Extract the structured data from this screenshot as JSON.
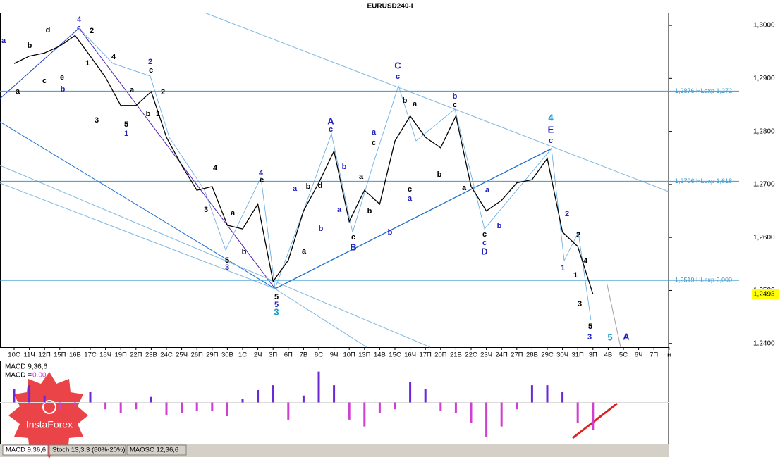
{
  "chart_data": [
    {
      "type": "line",
      "title": "EURUSD240-I",
      "color": "#000000",
      "categories": [
        "10С",
        "11Ч",
        "12П",
        "15П",
        "16В",
        "17С",
        "18Ч",
        "19П",
        "22П",
        "23В",
        "24С",
        "25Ч",
        "26П",
        "29П",
        "30В",
        "1С",
        "2Ч",
        "3П",
        "6П",
        "7В",
        "8С",
        "9Ч",
        "10П",
        "13П",
        "14В",
        "15С",
        "16Ч",
        "17П",
        "20П",
        "21В",
        "22С",
        "23Ч",
        "24П",
        "27П",
        "28В",
        "29С",
        "30Ч",
        "31П",
        "3П",
        "4В",
        "5С",
        "6Ч",
        "7П",
        "н"
      ],
      "values": [
        1.2928,
        1.2942,
        1.2948,
        1.2961,
        1.2981,
        1.2942,
        1.2902,
        1.2849,
        1.2849,
        1.2875,
        1.2789,
        1.2736,
        1.2689,
        1.2696,
        1.2623,
        1.2616,
        1.2663,
        1.2517,
        1.2557,
        1.265,
        1.2703,
        1.2763,
        1.263,
        1.2689,
        1.2663,
        1.2782,
        1.2829,
        1.2789,
        1.2769,
        1.2829,
        1.2696,
        1.265,
        1.267,
        1.2703,
        1.2709,
        1.2749,
        1.261,
        1.2583,
        1.2493,
        null,
        null,
        null,
        null,
        null
      ],
      "ylim": [
        1.2393,
        1.3024
      ],
      "yticks": [
        {
          "value": 1.24,
          "label": "1,2400"
        },
        {
          "value": 1.25,
          "label": "1,2500"
        },
        {
          "value": 1.26,
          "label": "1,2600"
        },
        {
          "value": 1.27,
          "label": "1,2700"
        },
        {
          "value": 1.28,
          "label": "1,2800"
        },
        {
          "value": 1.29,
          "label": "1,2900"
        },
        {
          "value": 1.3,
          "label": "1,3000"
        }
      ],
      "levels": [
        {
          "value": 1.2876,
          "label": "1,2876 HLexp 1,272"
        },
        {
          "value": 1.2706,
          "label": "1,2706 HLexp 1,618"
        },
        {
          "value": 1.2519,
          "label": "1,2519 HLexp 2,000"
        }
      ],
      "last_price": {
        "value": 1.2493,
        "label": "1,2493"
      },
      "annotations": [
        {
          "text": "4",
          "color": "#2020c0"
        },
        {
          "text": "c",
          "color": "#2020c0"
        },
        {
          "text": "2",
          "color": "#000000"
        },
        {
          "text": "d",
          "color": "#000000"
        },
        {
          "text": "b",
          "color": "#000000"
        },
        {
          "text": "a",
          "color": "#2020c0"
        },
        {
          "text": "a",
          "color": "#000000"
        },
        {
          "text": "c",
          "color": "#000000"
        },
        {
          "text": "e",
          "color": "#000000"
        },
        {
          "text": "b",
          "color": "#2020c0"
        },
        {
          "text": "1",
          "color": "#000000"
        },
        {
          "text": "4",
          "color": "#000000"
        },
        {
          "text": "3",
          "color": "#000000"
        },
        {
          "text": "5",
          "color": "#000000"
        },
        {
          "text": "1",
          "color": "#2020c0"
        },
        {
          "text": "2",
          "color": "#2020c0"
        },
        {
          "text": "c",
          "color": "#000000"
        },
        {
          "text": "a",
          "color": "#000000"
        },
        {
          "text": "b",
          "color": "#000000"
        },
        {
          "text": "1",
          "color": "#000000"
        },
        {
          "text": "2",
          "color": "#000000"
        },
        {
          "text": "4",
          "color": "#000000"
        },
        {
          "text": "3",
          "color": "#000000"
        },
        {
          "text": "a",
          "color": "#000000"
        },
        {
          "text": "b",
          "color": "#000000"
        },
        {
          "text": "5",
          "color": "#000000"
        },
        {
          "text": "3",
          "color": "#2020c0"
        },
        {
          "text": "4",
          "color": "#2020c0"
        },
        {
          "text": "c",
          "color": "#000000"
        },
        {
          "text": "5",
          "color": "#000000"
        },
        {
          "text": "5",
          "color": "#2020c0"
        },
        {
          "text": "3",
          "color": "#1a9ad0"
        },
        {
          "text": "a",
          "color": "#2020c0"
        },
        {
          "text": "b",
          "color": "#000000"
        },
        {
          "text": "a",
          "color": "#000000"
        },
        {
          "text": "A",
          "color": "#2020c0"
        },
        {
          "text": "c",
          "color": "#2020c0"
        },
        {
          "text": "b",
          "color": "#2020c0"
        },
        {
          "text": "a",
          "color": "#2020c0"
        },
        {
          "text": "b",
          "color": "#2020c0"
        },
        {
          "text": "d",
          "color": "#000000"
        },
        {
          "text": "c",
          "color": "#000000"
        },
        {
          "text": "B",
          "color": "#2020c0"
        },
        {
          "text": "a",
          "color": "#000000"
        },
        {
          "text": "b",
          "color": "#000000"
        },
        {
          "text": "a",
          "color": "#2020c0"
        },
        {
          "text": "c",
          "color": "#000000"
        },
        {
          "text": "C",
          "color": "#2020c0"
        },
        {
          "text": "c",
          "color": "#2020c0"
        },
        {
          "text": "b",
          "color": "#000000"
        },
        {
          "text": "a",
          "color": "#000000"
        },
        {
          "text": "b",
          "color": "#000000"
        },
        {
          "text": "a",
          "color": "#2020c0"
        },
        {
          "text": "c",
          "color": "#000000"
        },
        {
          "text": "b",
          "color": "#2020c0"
        },
        {
          "text": "b",
          "color": "#2020c0"
        },
        {
          "text": "c",
          "color": "#000000"
        },
        {
          "text": "a",
          "color": "#000000"
        },
        {
          "text": "a",
          "color": "#2020c0"
        },
        {
          "text": "b",
          "color": "#2020c0"
        },
        {
          "text": "c",
          "color": "#000000"
        },
        {
          "text": "c",
          "color": "#2020c0"
        },
        {
          "text": "D",
          "color": "#2020c0"
        },
        {
          "text": "4",
          "color": "#1a9ad0"
        },
        {
          "text": "E",
          "color": "#2020c0"
        },
        {
          "text": "c",
          "color": "#2020c0"
        },
        {
          "text": "2",
          "color": "#2020c0"
        },
        {
          "text": "2",
          "color": "#000000"
        },
        {
          "text": "1",
          "color": "#2020c0"
        },
        {
          "text": "1",
          "color": "#000000"
        },
        {
          "text": "4",
          "color": "#000000"
        },
        {
          "text": "3",
          "color": "#000000"
        },
        {
          "text": "5",
          "color": "#000000"
        },
        {
          "text": "3",
          "color": "#2020c0"
        },
        {
          "text": "5",
          "color": "#1a9ad0"
        },
        {
          "text": "A",
          "color": "#2020c0"
        }
      ]
    },
    {
      "type": "bar",
      "title": "MACD 9,36,6",
      "readout": {
        "label": "MACD =",
        "value": 0,
        "value_label": "0.00"
      },
      "up_color": "#6a28d8",
      "down_color": "#d040d0",
      "values": [
        0.002,
        0.0025,
        0.001,
        -0.001,
        -0.0005,
        0.0015,
        -0.001,
        -0.0015,
        -0.001,
        0.0008,
        -0.0018,
        -0.0015,
        -0.0012,
        -0.0012,
        -0.002,
        0.0005,
        0.0018,
        0.0025,
        -0.0025,
        0.001,
        0.0045,
        0.0025,
        -0.0025,
        -0.0035,
        -0.0015,
        -0.001,
        0.003,
        0.002,
        -0.0012,
        -0.0015,
        -0.003,
        -0.005,
        -0.0035,
        -0.001,
        0.0025,
        0.0025,
        0.0015,
        -0.003,
        -0.004,
        null,
        null,
        null,
        null,
        null
      ],
      "ylim": [
        -0.006,
        0.006
      ]
    }
  ],
  "tabs": [
    "MACD 9,36,6",
    "Stoch 13,3,3 (80%-20%)",
    "MAOSC 12,36,6"
  ],
  "logo_text": "InstaForex"
}
